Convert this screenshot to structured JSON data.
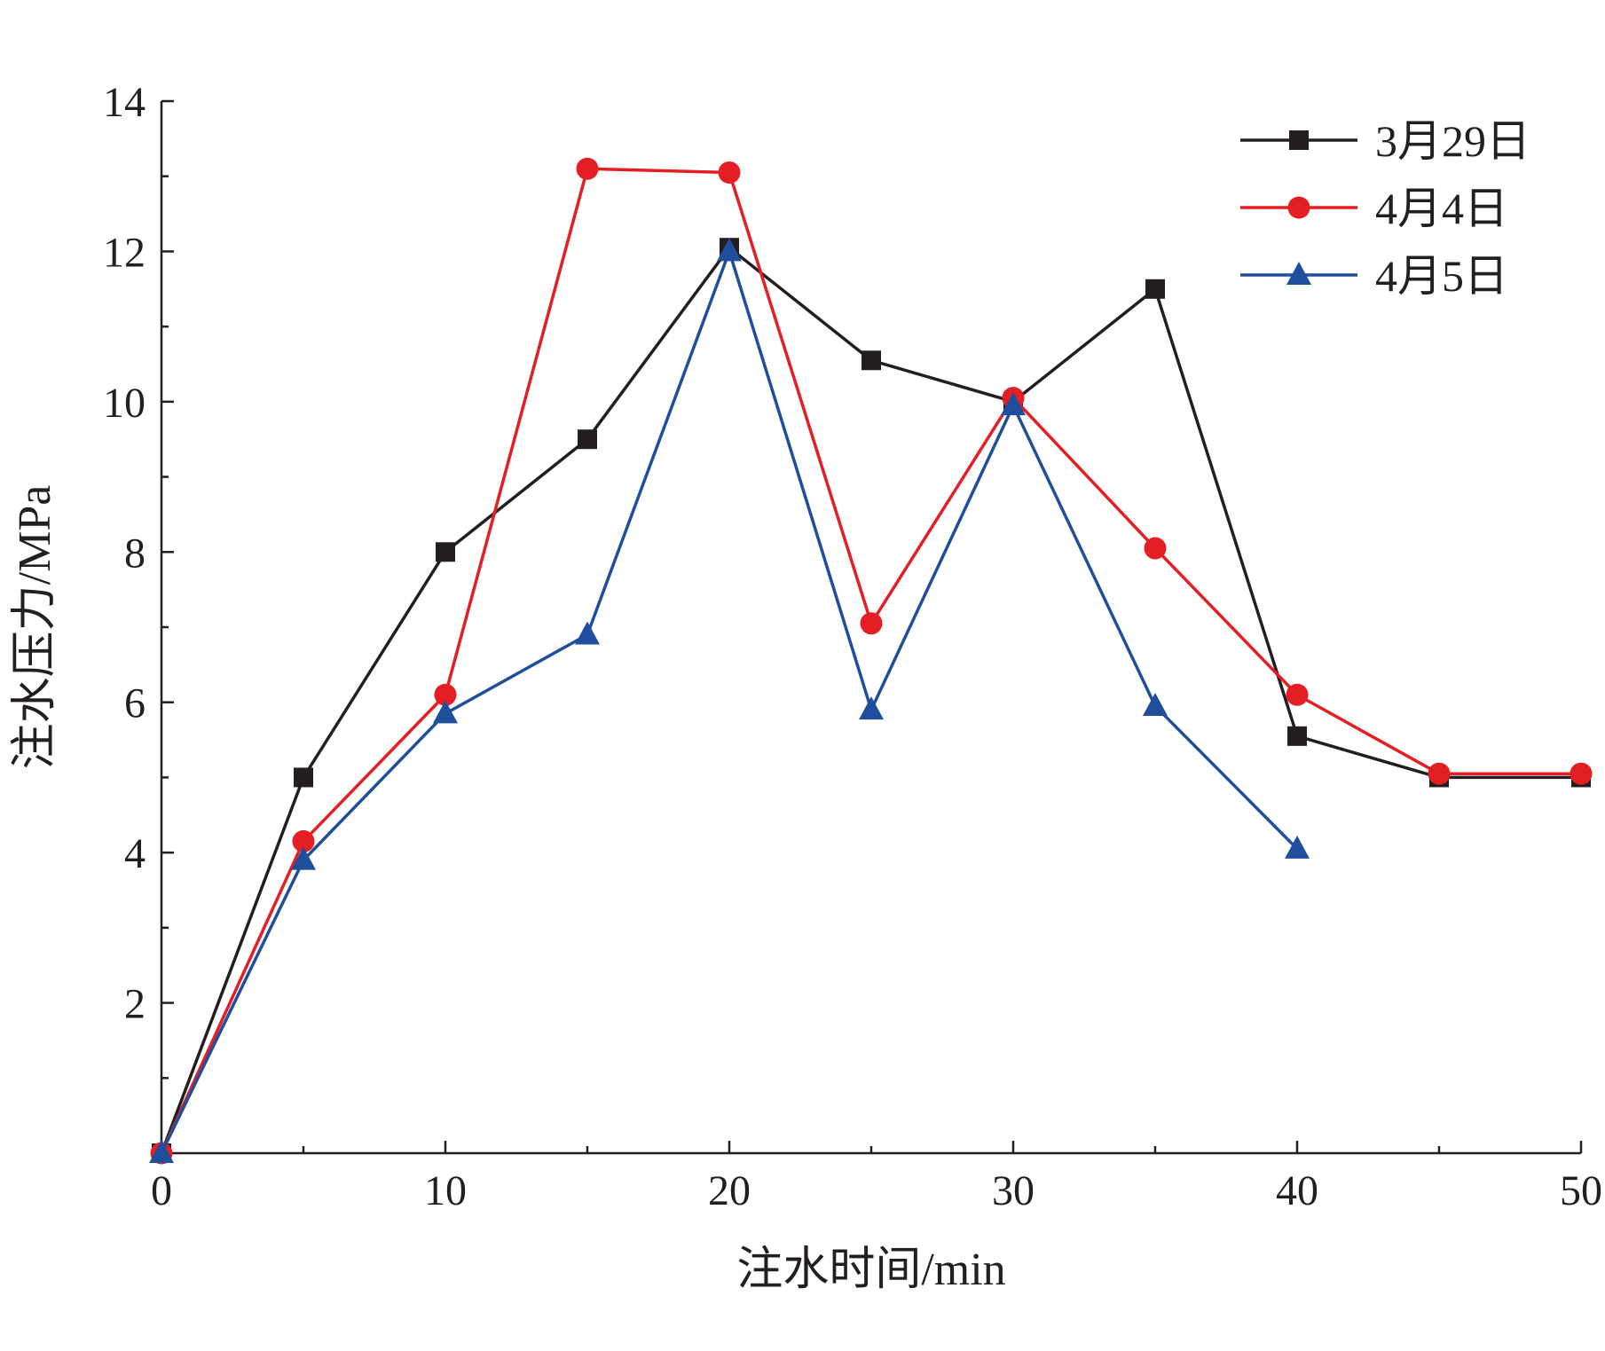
{
  "chart_data": {
    "type": "line",
    "xlabel": "注水时间/min",
    "ylabel": "注水压力/MPa",
    "xlim": [
      0,
      50
    ],
    "ylim": [
      0,
      14
    ],
    "x_ticks": [
      0,
      10,
      20,
      30,
      40,
      50
    ],
    "y_ticks": [
      2,
      4,
      6,
      8,
      10,
      12,
      14
    ],
    "grid": false,
    "legend_position": "top-right",
    "series": [
      {
        "name": "3月29日",
        "color": "#231f20",
        "marker": "square",
        "x": [
          0,
          5,
          10,
          15,
          20,
          25,
          30,
          35,
          40,
          45,
          50
        ],
        "values": [
          0,
          5.0,
          8.0,
          9.5,
          12.05,
          10.55,
          10.0,
          11.5,
          5.55,
          5.0,
          5.0
        ]
      },
      {
        "name": "4月4日",
        "color": "#e31e24",
        "marker": "circle",
        "x": [
          0,
          5,
          10,
          15,
          20,
          25,
          30,
          35,
          40,
          45,
          50
        ],
        "values": [
          0,
          4.15,
          6.1,
          13.1,
          13.05,
          7.05,
          10.05,
          8.05,
          6.1,
          5.05,
          5.05
        ]
      },
      {
        "name": "4月5日",
        "color": "#1f4e9c",
        "marker": "triangle",
        "x": [
          0,
          5,
          10,
          15,
          20,
          25,
          30,
          35,
          40
        ],
        "values": [
          0,
          3.9,
          5.85,
          6.9,
          12.0,
          5.9,
          9.95,
          5.95,
          4.05
        ]
      }
    ]
  }
}
